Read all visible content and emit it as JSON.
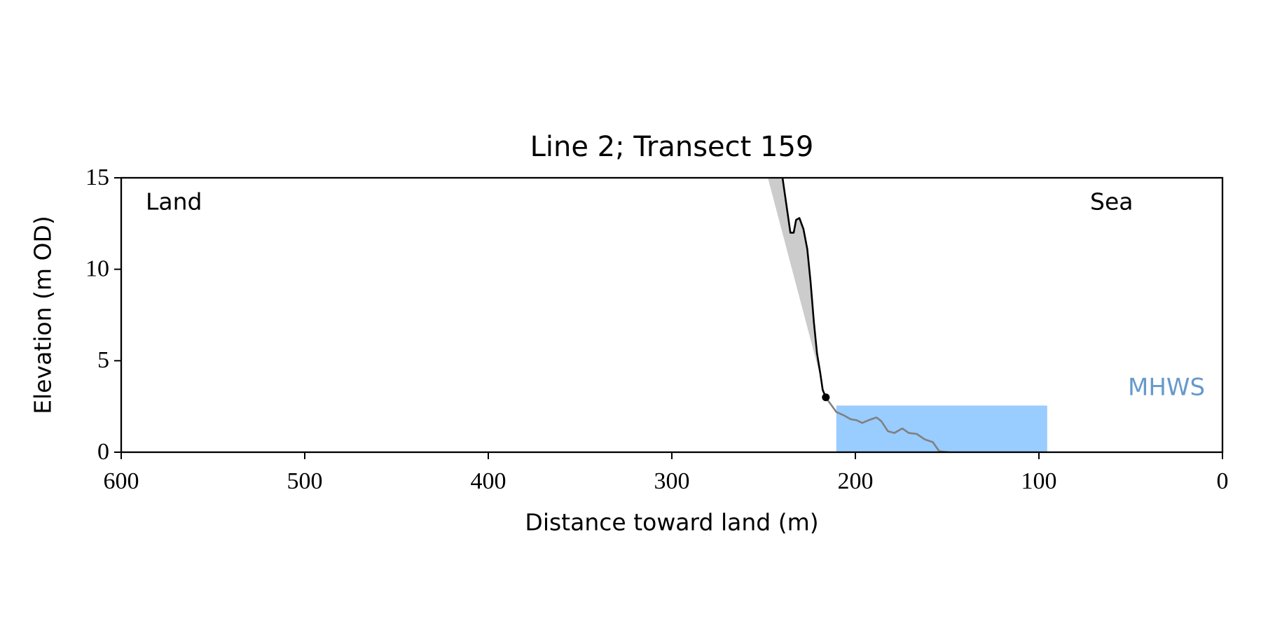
{
  "chart_data": {
    "type": "line",
    "title": "Line 2; Transect 159",
    "xlabel": "Distance toward land (m)",
    "ylabel": "Elevation (m OD)",
    "xlim": [
      600,
      0
    ],
    "ylim": [
      0,
      15
    ],
    "xticks": [
      600,
      500,
      400,
      300,
      200,
      100,
      0
    ],
    "yticks": [
      0,
      5,
      10,
      15
    ],
    "annotations": [
      {
        "text": "Land"
      },
      {
        "text": "Sea"
      }
    ],
    "mhws": {
      "label": "MHWS",
      "value": 2.55,
      "x": [
        210.4,
        95.5
      ],
      "color": "#99ccff",
      "label_color": "#6699cc"
    },
    "shade": {
      "x": [
        247.7,
        216.1
      ],
      "values": [
        15,
        3.0
      ],
      "color": "#cccccc"
    },
    "series": [
      {
        "color": "#000000",
        "x": [
          239.7,
          235.4,
          233.6,
          232.3,
          230.5,
          228.3,
          226.2,
          224.4,
          222.6,
          220.9,
          219.1,
          217.8,
          216.1
        ],
        "values": [
          15,
          12.0,
          12.0,
          12.7,
          12.8,
          12.2,
          11.1,
          9.3,
          7.1,
          5.4,
          4.3,
          3.4,
          3.0
        ]
      },
      {
        "color": "#808080",
        "x": [
          216.1,
          214.7,
          210.4,
          206.0,
          202.5,
          199.4,
          196.3,
          192.8,
          188.5,
          185.9,
          182.3,
          178.8,
          174.4,
          170.9,
          166.6,
          162.2,
          157.8,
          154.3,
          149.0
        ],
        "values": [
          3.0,
          2.8,
          2.2,
          2.0,
          1.8,
          1.75,
          1.6,
          1.75,
          1.9,
          1.7,
          1.15,
          1.05,
          1.3,
          1.05,
          1.0,
          0.7,
          0.55,
          0.05,
          0
        ]
      }
    ],
    "marker": {
      "x": 216.1,
      "y": 3.0,
      "color": "#000000"
    }
  }
}
